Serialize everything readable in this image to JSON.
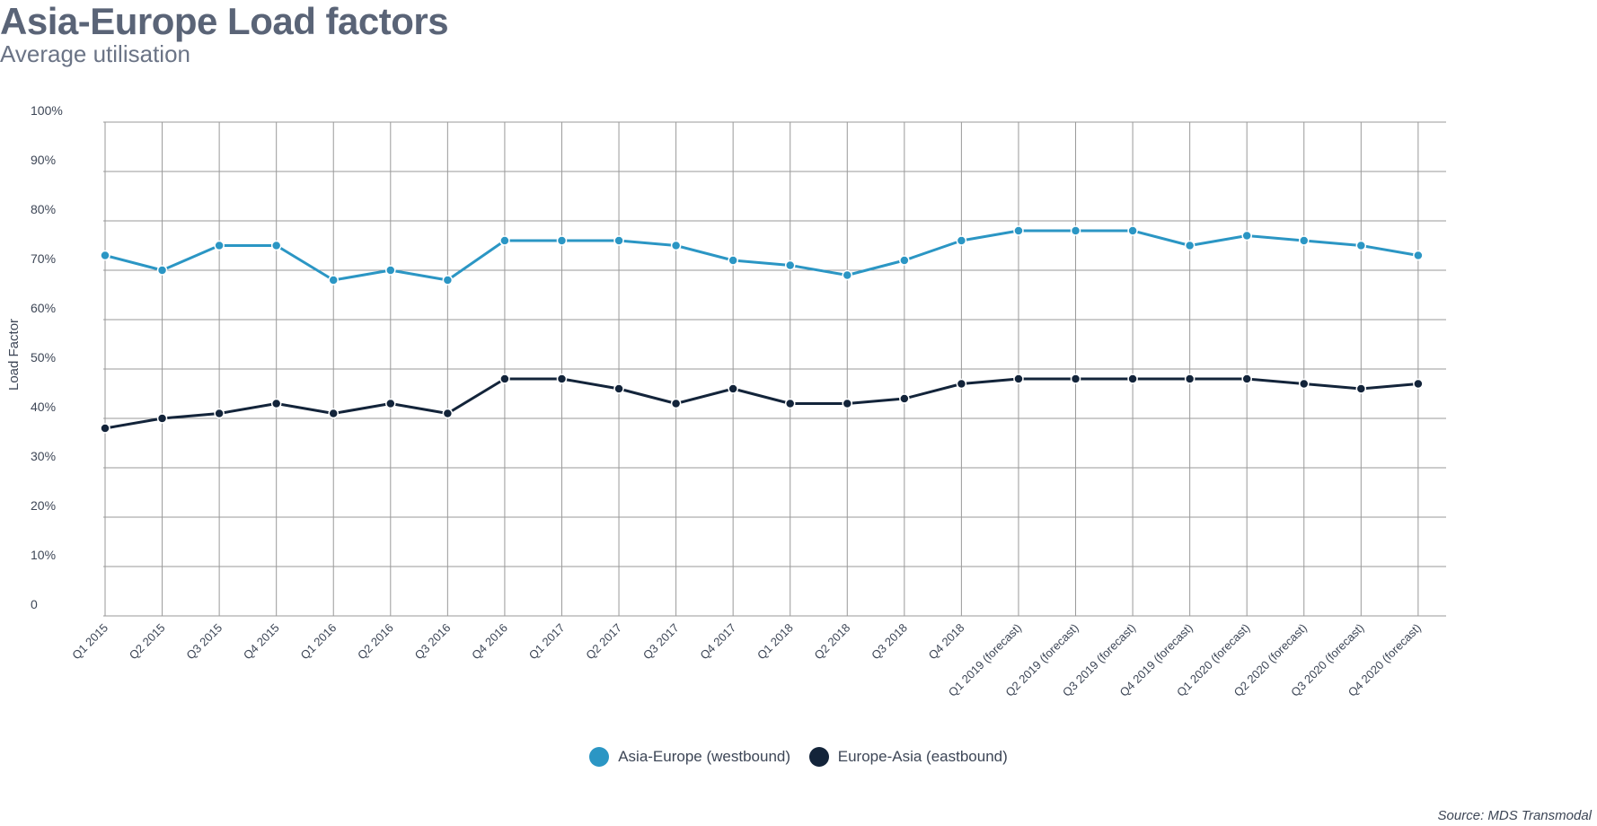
{
  "title": "Asia-Europe Load factors",
  "subtitle": "Average utilisation",
  "source": "Source: MDS Transmodal",
  "colors": {
    "series1": "#2b96c4",
    "series2": "#13243a",
    "grid": "#9a9a9a",
    "text": "#3d4656"
  },
  "chart_data": {
    "type": "line",
    "title": "Asia-Europe Load factors",
    "subtitle": "Average utilisation",
    "xlabel": "",
    "ylabel": "Load Factor",
    "ylim": [
      0,
      100
    ],
    "yticks": [
      "0",
      "10%",
      "20%",
      "30%",
      "40%",
      "50%",
      "60%",
      "70%",
      "80%",
      "90%",
      "100%"
    ],
    "grid": true,
    "legend_position": "bottom",
    "categories": [
      "Q1 2015",
      "Q2 2015",
      "Q3 2015",
      "Q4 2015",
      "Q1 2016",
      "Q2 2016",
      "Q3 2016",
      "Q4 2016",
      "Q1 2017",
      "Q2 2017",
      "Q3 2017",
      "Q4 2017",
      "Q1 2018",
      "Q2 2018",
      "Q3 2018",
      "Q4 2018",
      "Q1 2019 (forecast)",
      "Q2 2019 (forecast)",
      "Q3 2019 (forecast)",
      "Q4 2019 (forecast)",
      "Q1 2020 (forecast)",
      "Q2 2020 (forecast)",
      "Q3 2020 (forecast)",
      "Q4 2020 (forecast)"
    ],
    "series": [
      {
        "name": "Asia-Europe (westbound)",
        "color": "#2b96c4",
        "values": [
          73,
          70,
          75,
          75,
          68,
          70,
          68,
          76,
          76,
          76,
          75,
          72,
          71,
          69,
          72,
          76,
          78,
          78,
          78,
          75,
          77,
          76,
          75,
          73
        ]
      },
      {
        "name": "Europe-Asia (eastbound)",
        "color": "#13243a",
        "values": [
          38,
          40,
          41,
          43,
          41,
          43,
          41,
          48,
          48,
          46,
          43,
          46,
          43,
          43,
          44,
          47,
          48,
          48,
          48,
          48,
          48,
          47,
          46,
          47
        ]
      }
    ]
  }
}
